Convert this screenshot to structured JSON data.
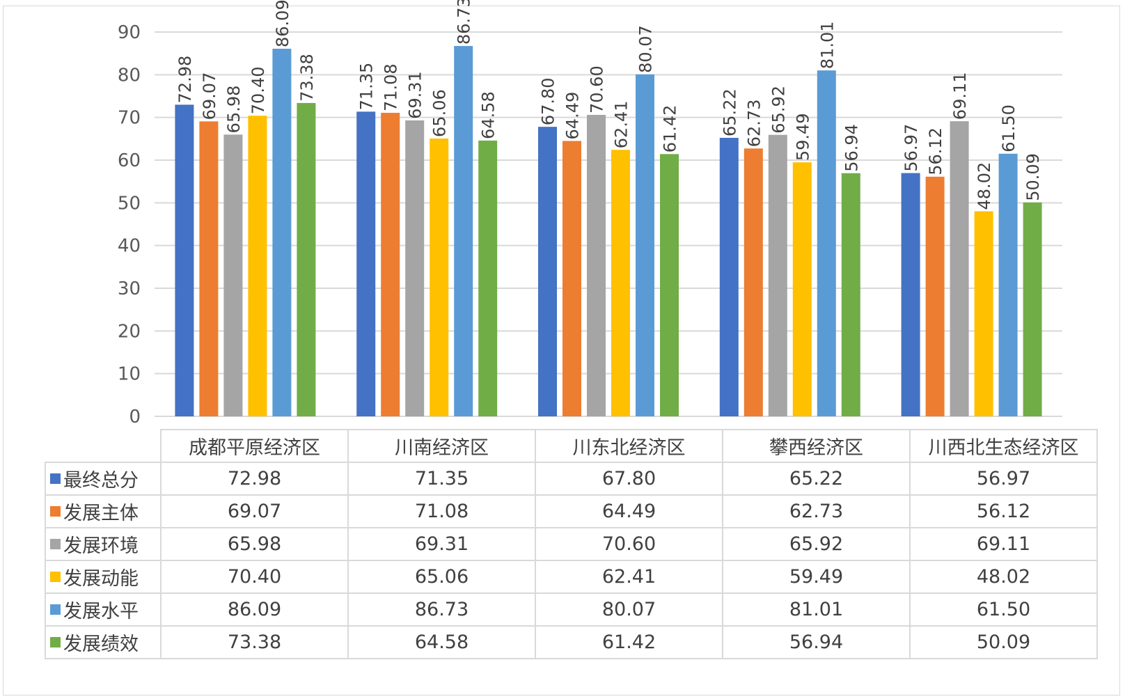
{
  "chart_data": {
    "type": "bar",
    "categories": [
      "成都平原经济区",
      "川南经济区",
      "川东北经济区",
      "攀西经济区",
      "川西北生态经济区"
    ],
    "ylim": [
      0,
      90
    ],
    "yticks": [
      0,
      10,
      20,
      30,
      40,
      50,
      60,
      70,
      80,
      90
    ],
    "grid": true,
    "legend": "data-table",
    "series": [
      {
        "name": "最终总分",
        "color": "#4472C4",
        "values": [
          72.98,
          71.35,
          67.8,
          65.22,
          56.97
        ],
        "labels": [
          "72.98",
          "71.35",
          "67.80",
          "65.22",
          "56.97"
        ]
      },
      {
        "name": "发展主体",
        "color": "#ED7D31",
        "values": [
          69.07,
          71.08,
          64.49,
          62.73,
          56.12
        ],
        "labels": [
          "69.07",
          "71.08",
          "64.49",
          "62.73",
          "56.12"
        ]
      },
      {
        "name": "发展环境",
        "color": "#A5A5A5",
        "values": [
          65.98,
          69.31,
          70.6,
          65.92,
          69.11
        ],
        "labels": [
          "65.98",
          "69.31",
          "70.60",
          "65.92",
          "69.11"
        ]
      },
      {
        "name": "发展动能",
        "color": "#FFC000",
        "values": [
          70.4,
          65.06,
          62.41,
          59.49,
          48.02
        ],
        "labels": [
          "70.40",
          "65.06",
          "62.41",
          "59.49",
          "48.02"
        ]
      },
      {
        "name": "发展水平",
        "color": "#5B9BD5",
        "values": [
          86.09,
          86.73,
          80.07,
          81.01,
          61.5
        ],
        "labels": [
          "86.09",
          "86.73",
          "80.07",
          "81.01",
          "61.50"
        ]
      },
      {
        "name": "发展绩效",
        "color": "#70AD47",
        "values": [
          73.38,
          64.58,
          61.42,
          56.94,
          50.09
        ],
        "labels": [
          "73.38",
          "64.58",
          "61.42",
          "56.94",
          "50.09"
        ]
      }
    ]
  }
}
